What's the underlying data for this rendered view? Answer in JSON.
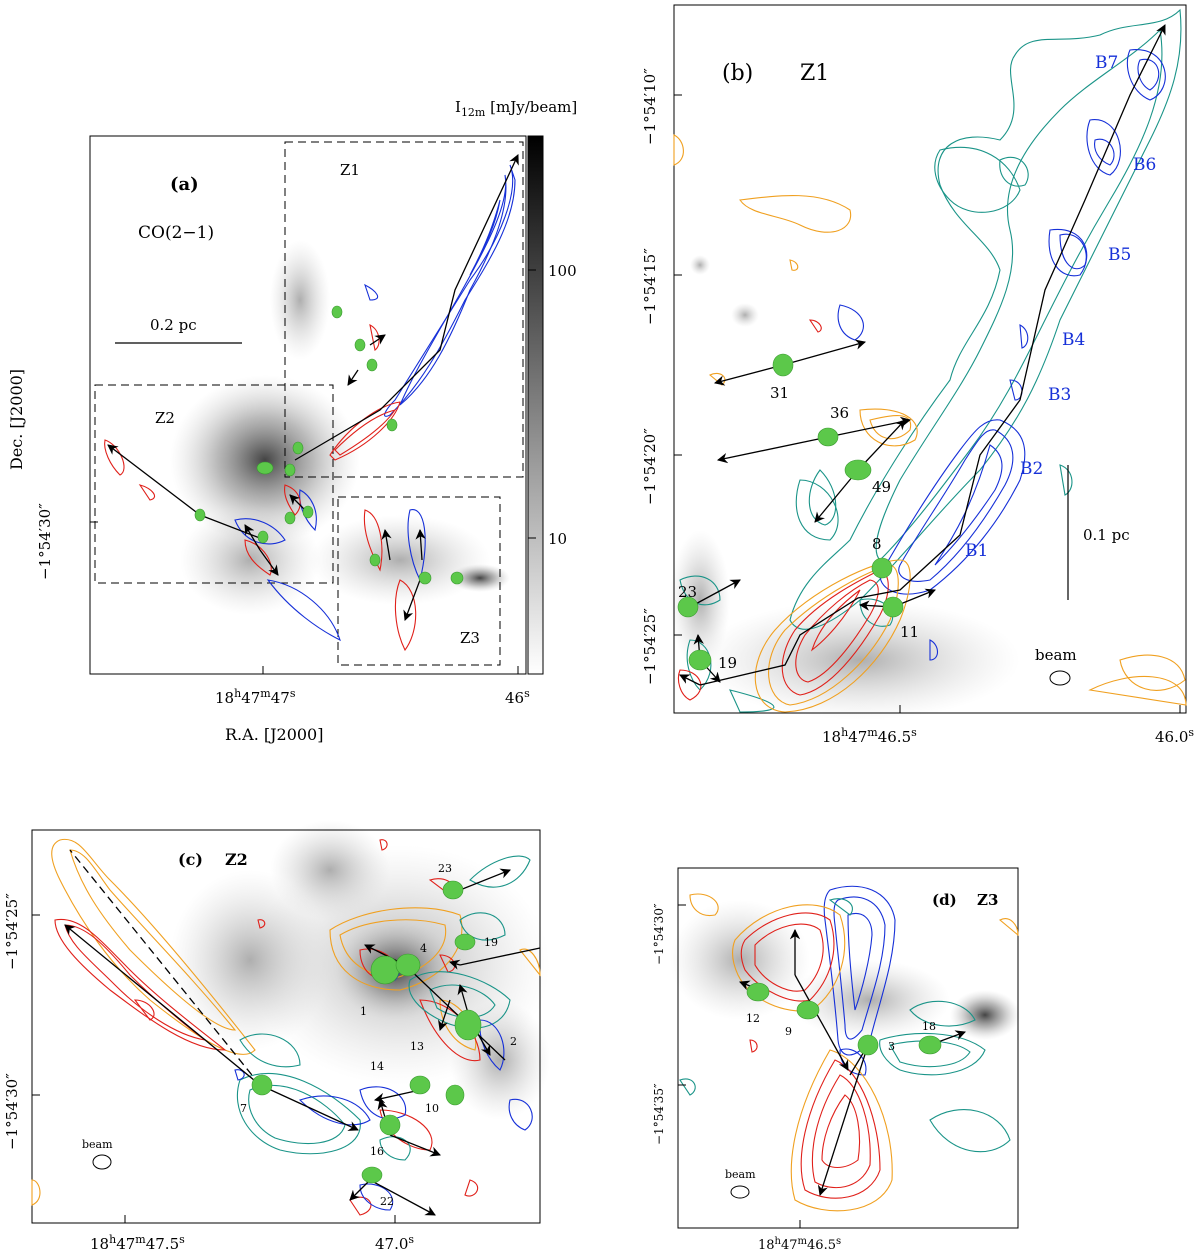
{
  "panel_a": {
    "tag": "(a)",
    "molecule": "CO(2−1)",
    "scale_bar": "0.2 pc",
    "zone_labels": [
      "Z1",
      "Z2",
      "Z3"
    ],
    "colorbar_title": "I",
    "colorbar_sub": "12m",
    "colorbar_unit": " [mJy/beam]",
    "colorbar_ticks": [
      "100",
      "10"
    ],
    "dec_tick": "−1°54′30″",
    "ra_tick_main": "18",
    "ra_tick_h": "h",
    "ra_tick_m": "47",
    "ra_tick_mm": "m",
    "ra_tick_s1": "47",
    "ra_tick_ss": "s",
    "ra_tick_s2": "46",
    "ra_tick_s2s": "s",
    "xlabel": "R.A. [J2000]",
    "ylabel": "Dec. [J2000]"
  },
  "panel_b": {
    "tag": "(b)",
    "zone": "Z1",
    "dec_ticks": [
      "−1°54′10″",
      "−1°54′15″",
      "−1°54′20″",
      "−1°54′25″"
    ],
    "ra_main": "18",
    "ra_h": "h",
    "ra_m": "47",
    "ra_mm": "m",
    "ra_s": "46.5",
    "ra_ss": "s",
    "ra_right": "46.0",
    "ra_right_s": "s",
    "knots": [
      "B7",
      "B6",
      "B5",
      "B4",
      "B3",
      "B2",
      "B1"
    ],
    "cores": [
      "31",
      "36",
      "49",
      "8",
      "11",
      "23",
      "19"
    ],
    "scale_bar": "0.1 pc",
    "beam": "beam"
  },
  "panel_c": {
    "tag": "(c)",
    "zone": "Z2",
    "dec_ticks": [
      "−1°54′25″",
      "−1°54′30″"
    ],
    "ra_tick1": "18",
    "ra_tick1_h": "h",
    "ra_tick1_m": "47",
    "ra_tick1_mm": "m",
    "ra_tick1_s": "47.5",
    "ra_tick1_ss": "s",
    "ra_tick2": "47.0",
    "ra_tick2_s": "s",
    "cores": [
      "23",
      "4",
      "19",
      "1",
      "13",
      "2",
      "14",
      "10",
      "7",
      "16",
      "22"
    ],
    "beam": "beam"
  },
  "panel_d": {
    "tag": "(d)",
    "zone": "Z3",
    "dec_ticks": [
      "−1°54′30″",
      "−1°54′35″"
    ],
    "ra_main": "18",
    "ra_h": "h",
    "ra_m": "47",
    "ra_mm": "m",
    "ra_s": "46.5",
    "ra_ss": "s",
    "cores": [
      "12",
      "9",
      "3",
      "18"
    ],
    "beam": "beam"
  }
}
